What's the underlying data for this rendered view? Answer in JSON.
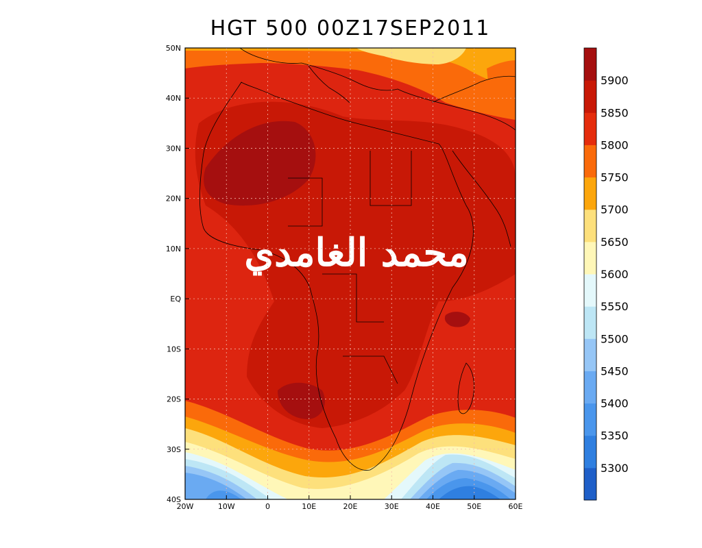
{
  "title": "HGT 500 00Z17SEP2011",
  "watermark_text": "محمد الغامدي",
  "x_ticks": [
    "20W",
    "10W",
    "0",
    "10E",
    "20E",
    "30E",
    "40E",
    "50E",
    "60E"
  ],
  "y_ticks": [
    "50N",
    "40N",
    "30N",
    "20N",
    "10N",
    "EQ",
    "10S",
    "20S",
    "30S",
    "40S"
  ],
  "colorbar": {
    "labels": [
      "5300",
      "5350",
      "5400",
      "5450",
      "5500",
      "5550",
      "5600",
      "5650",
      "5700",
      "5750",
      "5800",
      "5850",
      "5900"
    ],
    "colors": [
      "#1f5fc8",
      "#2f7fe0",
      "#4a96ec",
      "#6aaaf2",
      "#96c6f6",
      "#bde6f5",
      "#e4f8fb",
      "#fff7b8",
      "#fde07c",
      "#fca60c",
      "#fa6a0a",
      "#e52c0c",
      "#c81806",
      "#a50f0f"
    ]
  },
  "fields": {
    "base_color": "#dd2510"
  }
}
